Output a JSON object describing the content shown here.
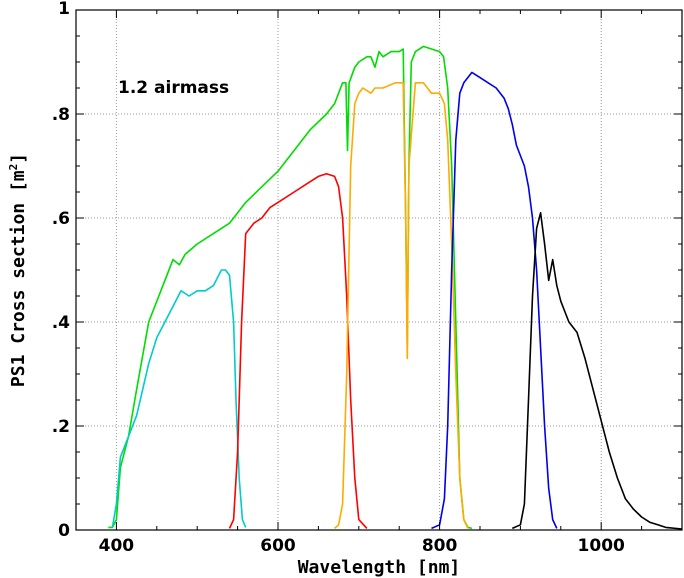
{
  "chart_data": {
    "type": "line",
    "xlabel": "Wavelength [nm]",
    "ylabel": "PS1 Cross section [m",
    "ylabel_sup": "2",
    "ylabel_close": "]",
    "xlim": [
      350,
      1100
    ],
    "ylim": [
      0,
      1
    ],
    "x_ticks": [
      400,
      600,
      800,
      1000
    ],
    "x_tick_labels": [
      "400",
      "600",
      "800",
      "1000"
    ],
    "y_ticks": [
      0,
      0.2,
      0.4,
      0.6,
      0.8,
      1
    ],
    "y_tick_labels": [
      "0",
      ".2",
      ".4",
      ".6",
      ".8",
      "1"
    ],
    "grid": true,
    "annotation": "1.2  airmass",
    "series": [
      {
        "color": "#00dd00",
        "points": [
          [
            390,
            0.005
          ],
          [
            395,
            0.005
          ],
          [
            400,
            0.02
          ],
          [
            405,
            0.12
          ],
          [
            415,
            0.18
          ],
          [
            425,
            0.27
          ],
          [
            440,
            0.4
          ],
          [
            460,
            0.48
          ],
          [
            470,
            0.52
          ],
          [
            478,
            0.51
          ],
          [
            485,
            0.53
          ],
          [
            500,
            0.55
          ],
          [
            520,
            0.57
          ],
          [
            540,
            0.59
          ],
          [
            560,
            0.63
          ],
          [
            580,
            0.66
          ],
          [
            600,
            0.69
          ],
          [
            620,
            0.73
          ],
          [
            640,
            0.77
          ],
          [
            660,
            0.8
          ],
          [
            670,
            0.82
          ],
          [
            675,
            0.84
          ],
          [
            680,
            0.86
          ],
          [
            684,
            0.86
          ],
          [
            686,
            0.73
          ],
          [
            688,
            0.86
          ],
          [
            695,
            0.89
          ],
          [
            700,
            0.9
          ],
          [
            710,
            0.91
          ],
          [
            715,
            0.91
          ],
          [
            720,
            0.89
          ],
          [
            725,
            0.92
          ],
          [
            730,
            0.91
          ],
          [
            740,
            0.92
          ],
          [
            750,
            0.92
          ],
          [
            755,
            0.925
          ],
          [
            758,
            0.6
          ],
          [
            760,
            0.35
          ],
          [
            762,
            0.7
          ],
          [
            765,
            0.9
          ],
          [
            770,
            0.92
          ],
          [
            780,
            0.93
          ],
          [
            790,
            0.925
          ],
          [
            800,
            0.92
          ],
          [
            805,
            0.91
          ],
          [
            810,
            0.85
          ],
          [
            815,
            0.7
          ],
          [
            820,
            0.4
          ],
          [
            825,
            0.1
          ],
          [
            830,
            0.02
          ],
          [
            835,
            0.005
          ],
          [
            840,
            0.003
          ]
        ]
      },
      {
        "color": "#00cccc",
        "points": [
          [
            395,
            0.005
          ],
          [
            400,
            0.05
          ],
          [
            405,
            0.14
          ],
          [
            415,
            0.18
          ],
          [
            425,
            0.22
          ],
          [
            440,
            0.32
          ],
          [
            450,
            0.37
          ],
          [
            460,
            0.4
          ],
          [
            470,
            0.43
          ],
          [
            480,
            0.46
          ],
          [
            490,
            0.45
          ],
          [
            500,
            0.46
          ],
          [
            510,
            0.46
          ],
          [
            520,
            0.47
          ],
          [
            530,
            0.5
          ],
          [
            535,
            0.5
          ],
          [
            540,
            0.49
          ],
          [
            545,
            0.4
          ],
          [
            548,
            0.25
          ],
          [
            552,
            0.1
          ],
          [
            556,
            0.02
          ],
          [
            560,
            0.005
          ]
        ]
      },
      {
        "color": "#ff0000",
        "points": [
          [
            540,
            0.003
          ],
          [
            545,
            0.02
          ],
          [
            550,
            0.15
          ],
          [
            555,
            0.4
          ],
          [
            560,
            0.57
          ],
          [
            570,
            0.59
          ],
          [
            580,
            0.6
          ],
          [
            590,
            0.62
          ],
          [
            600,
            0.63
          ],
          [
            620,
            0.65
          ],
          [
            640,
            0.67
          ],
          [
            650,
            0.68
          ],
          [
            660,
            0.685
          ],
          [
            670,
            0.68
          ],
          [
            675,
            0.66
          ],
          [
            680,
            0.6
          ],
          [
            685,
            0.45
          ],
          [
            690,
            0.25
          ],
          [
            695,
            0.1
          ],
          [
            700,
            0.02
          ],
          [
            710,
            0.003
          ]
        ]
      },
      {
        "color": "#ffaa00",
        "points": [
          [
            670,
            0.003
          ],
          [
            675,
            0.01
          ],
          [
            680,
            0.05
          ],
          [
            685,
            0.3
          ],
          [
            690,
            0.7
          ],
          [
            695,
            0.82
          ],
          [
            700,
            0.84
          ],
          [
            705,
            0.85
          ],
          [
            715,
            0.84
          ],
          [
            720,
            0.85
          ],
          [
            730,
            0.85
          ],
          [
            745,
            0.86
          ],
          [
            755,
            0.86
          ],
          [
            758,
            0.6
          ],
          [
            760,
            0.33
          ],
          [
            762,
            0.7
          ],
          [
            770,
            0.86
          ],
          [
            780,
            0.86
          ],
          [
            790,
            0.84
          ],
          [
            800,
            0.84
          ],
          [
            806,
            0.82
          ],
          [
            810,
            0.75
          ],
          [
            815,
            0.55
          ],
          [
            820,
            0.3
          ],
          [
            825,
            0.1
          ],
          [
            830,
            0.02
          ],
          [
            835,
            0.003
          ]
        ]
      },
      {
        "color": "#0000ee",
        "points": [
          [
            790,
            0.003
          ],
          [
            800,
            0.01
          ],
          [
            806,
            0.06
          ],
          [
            810,
            0.2
          ],
          [
            815,
            0.5
          ],
          [
            820,
            0.75
          ],
          [
            825,
            0.84
          ],
          [
            830,
            0.86
          ],
          [
            840,
            0.88
          ],
          [
            850,
            0.87
          ],
          [
            860,
            0.86
          ],
          [
            870,
            0.85
          ],
          [
            880,
            0.83
          ],
          [
            885,
            0.81
          ],
          [
            890,
            0.78
          ],
          [
            895,
            0.74
          ],
          [
            900,
            0.72
          ],
          [
            905,
            0.7
          ],
          [
            910,
            0.66
          ],
          [
            915,
            0.6
          ],
          [
            920,
            0.5
          ],
          [
            925,
            0.35
          ],
          [
            930,
            0.2
          ],
          [
            935,
            0.08
          ],
          [
            940,
            0.02
          ],
          [
            945,
            0.003
          ]
        ]
      },
      {
        "color": "#000000",
        "points": [
          [
            890,
            0.003
          ],
          [
            900,
            0.01
          ],
          [
            905,
            0.05
          ],
          [
            910,
            0.25
          ],
          [
            915,
            0.45
          ],
          [
            920,
            0.58
          ],
          [
            925,
            0.61
          ],
          [
            930,
            0.55
          ],
          [
            935,
            0.48
          ],
          [
            940,
            0.52
          ],
          [
            945,
            0.47
          ],
          [
            950,
            0.44
          ],
          [
            960,
            0.4
          ],
          [
            970,
            0.38
          ],
          [
            980,
            0.33
          ],
          [
            990,
            0.27
          ],
          [
            1000,
            0.21
          ],
          [
            1010,
            0.15
          ],
          [
            1020,
            0.1
          ],
          [
            1030,
            0.06
          ],
          [
            1040,
            0.04
          ],
          [
            1050,
            0.025
          ],
          [
            1060,
            0.015
          ],
          [
            1070,
            0.01
          ],
          [
            1080,
            0.005
          ],
          [
            1100,
            0.002
          ]
        ]
      }
    ]
  }
}
